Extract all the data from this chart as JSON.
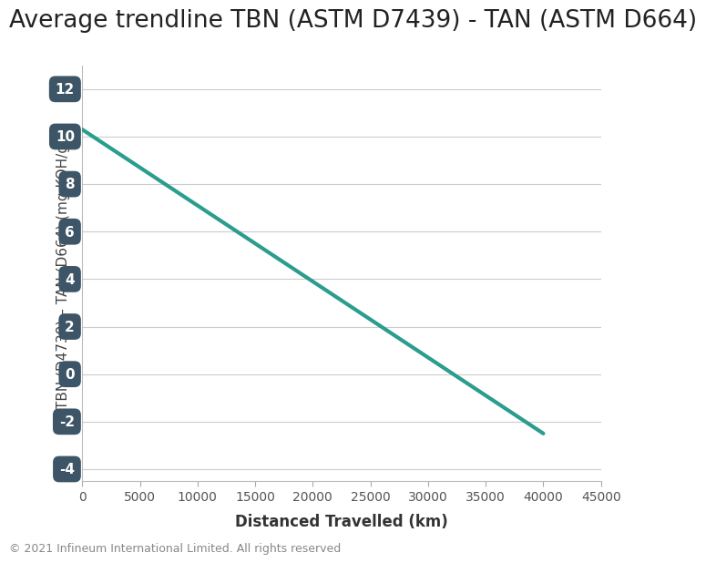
{
  "title": "Average trendline TBN (ASTM D7439) - TAN (ASTM D664)",
  "xlabel": "Distanced Travelled (km)",
  "ylabel": "TBN (D4739) – TAN (D664) (mg KOH/g)",
  "x_start": 0,
  "x_end": 40000,
  "y_start": 10.3,
  "y_end": -2.5,
  "xlim": [
    0,
    45000
  ],
  "ylim": [
    -4.5,
    13
  ],
  "xticks": [
    0,
    5000,
    10000,
    15000,
    20000,
    25000,
    30000,
    35000,
    40000,
    45000
  ],
  "yticks": [
    -4,
    -2,
    0,
    2,
    4,
    6,
    8,
    10,
    12
  ],
  "line_color": "#2a9d8f",
  "line_width": 3.0,
  "tick_label_color": "#ffffff",
  "tick_box_color": "#3d5566",
  "background_color": "#ffffff",
  "grid_color": "#cccccc",
  "title_fontsize": 19,
  "axis_label_fontsize": 12,
  "tick_fontsize": 11,
  "xtick_fontsize": 10,
  "copyright_text": "© 2021 Infineum International Limited. All rights reserved",
  "copyright_fontsize": 9,
  "copyright_color": "#888888"
}
